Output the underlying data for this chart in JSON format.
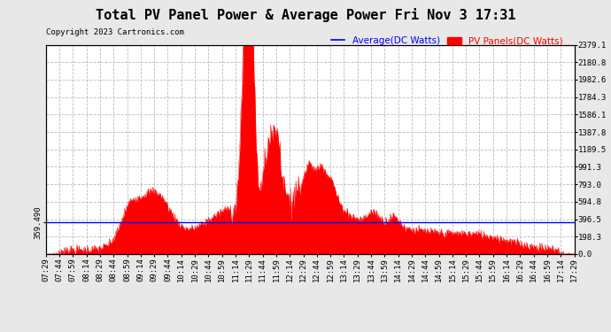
{
  "title": "Total PV Panel Power & Average Power Fri Nov 3 17:31",
  "copyright": "Copyright 2023 Cartronics.com",
  "legend_avg": "Average(DC Watts)",
  "legend_pv": "PV Panels(DC Watts)",
  "avg_value": 359.49,
  "avg_label": "359.490",
  "ymax": 2379.1,
  "ymin": 0.0,
  "yticks_right": [
    0.0,
    198.3,
    396.5,
    594.8,
    793.0,
    991.3,
    1189.5,
    1387.8,
    1586.1,
    1784.3,
    1982.6,
    2180.8,
    2379.1
  ],
  "background_color": "#e8e8e8",
  "plot_bg": "#ffffff",
  "grid_color": "#bbbbbb",
  "fill_color": "#ff0000",
  "line_color": "#ff0000",
  "avg_line_color": "#0000ff",
  "title_fontsize": 11,
  "copyright_fontsize": 6.5,
  "tick_fontsize": 6.5,
  "legend_fontsize": 7.5,
  "xtick_labels": [
    "07:29",
    "07:44",
    "07:59",
    "08:14",
    "08:29",
    "08:44",
    "08:59",
    "09:14",
    "09:29",
    "09:44",
    "10:14",
    "10:29",
    "10:44",
    "10:59",
    "11:14",
    "11:29",
    "11:44",
    "11:59",
    "12:14",
    "12:29",
    "12:44",
    "12:59",
    "13:14",
    "13:29",
    "13:44",
    "13:59",
    "14:14",
    "14:29",
    "14:44",
    "14:59",
    "15:14",
    "15:29",
    "15:44",
    "15:59",
    "16:14",
    "16:29",
    "16:44",
    "16:59",
    "17:14",
    "17:29"
  ],
  "num_points": 800
}
